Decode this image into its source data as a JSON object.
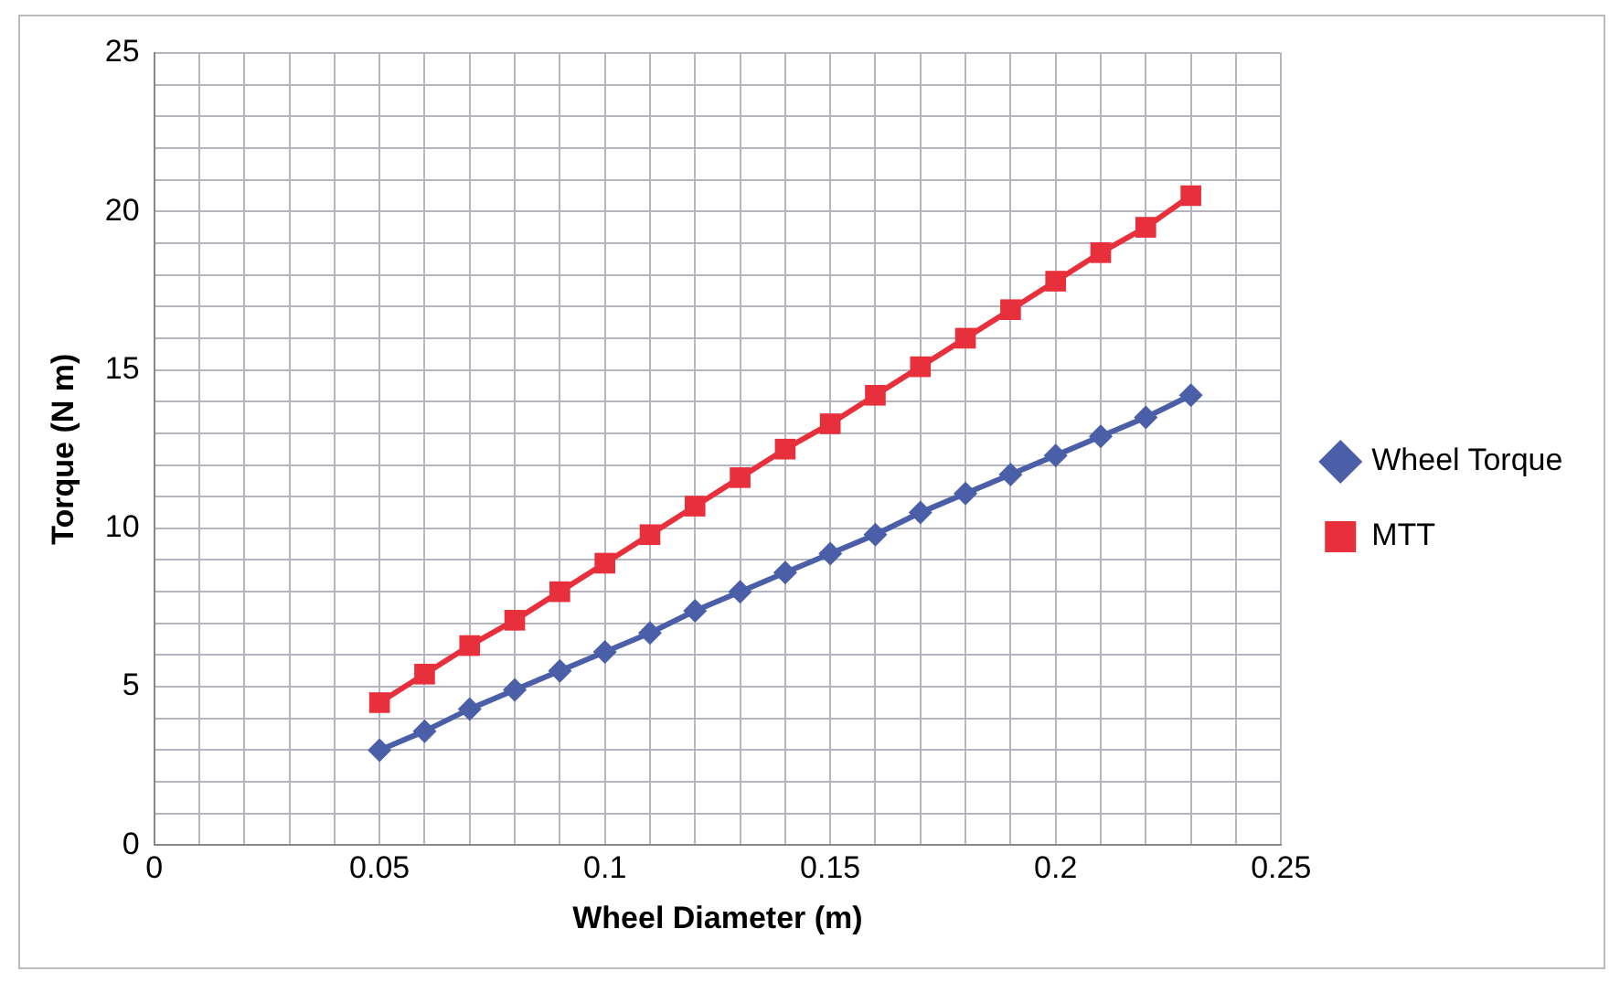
{
  "chart_data": {
    "type": "line",
    "xlabel": "Wheel Diameter (m)",
    "ylabel": "Torque (N m)",
    "x": [
      0.05,
      0.06,
      0.07,
      0.08,
      0.09,
      0.1,
      0.11,
      0.12,
      0.13,
      0.14,
      0.15,
      0.16,
      0.17,
      0.18,
      0.19,
      0.2,
      0.21,
      0.22,
      0.23
    ],
    "series": [
      {
        "name": "Wheel Torque",
        "color": "#4a5fa8",
        "marker": "diamond",
        "values": [
          3.0,
          3.6,
          4.3,
          4.9,
          5.5,
          6.1,
          6.7,
          7.4,
          8.0,
          8.6,
          9.2,
          9.8,
          10.5,
          11.1,
          11.7,
          12.3,
          12.9,
          13.5,
          14.2
        ]
      },
      {
        "name": "MTT",
        "color": "#e8303c",
        "marker": "square",
        "values": [
          4.5,
          5.4,
          6.3,
          7.1,
          8.0,
          8.9,
          9.8,
          10.7,
          11.6,
          12.5,
          13.3,
          14.2,
          15.1,
          16.0,
          16.9,
          17.8,
          18.7,
          19.5,
          20.5
        ]
      }
    ],
    "xlim": [
      0,
      0.25
    ],
    "xticks": [
      0,
      {
        "value": 0.01,
        "label": null
      },
      {
        "value": 0.02,
        "label": null
      },
      {
        "value": 0.03,
        "label": null
      },
      {
        "value": 0.04,
        "label": null
      },
      0.05,
      {
        "value": 0.06,
        "label": null
      },
      {
        "value": 0.07,
        "label": null
      },
      {
        "value": 0.08,
        "label": null
      },
      {
        "value": 0.09,
        "label": null
      },
      0.1,
      {
        "value": 0.11,
        "label": null
      },
      {
        "value": 0.12,
        "label": null
      },
      {
        "value": 0.13,
        "label": null
      },
      {
        "value": 0.14,
        "label": null
      },
      0.15,
      {
        "value": 0.16,
        "label": null
      },
      {
        "value": 0.17,
        "label": null
      },
      {
        "value": 0.18,
        "label": null
      },
      {
        "value": 0.19,
        "label": null
      },
      0.2,
      {
        "value": 0.21,
        "label": null
      },
      {
        "value": 0.22,
        "label": null
      },
      {
        "value": 0.23,
        "label": null
      },
      {
        "value": 0.24,
        "label": null
      },
      0.25
    ],
    "ylim": [
      0,
      25
    ],
    "yticks": [
      0,
      {
        "value": 1,
        "label": null
      },
      {
        "value": 2,
        "label": null
      },
      {
        "value": 3,
        "label": null
      },
      {
        "value": 4,
        "label": null
      },
      5,
      {
        "value": 6,
        "label": null
      },
      {
        "value": 7,
        "label": null
      },
      {
        "value": 8,
        "label": null
      },
      {
        "value": 9,
        "label": null
      },
      10,
      {
        "value": 11,
        "label": null
      },
      {
        "value": 12,
        "label": null
      },
      {
        "value": 13,
        "label": null
      },
      {
        "value": 14,
        "label": null
      },
      15,
      {
        "value": 16,
        "label": null
      },
      {
        "value": 17,
        "label": null
      },
      {
        "value": 18,
        "label": null
      },
      {
        "value": 19,
        "label": null
      },
      20,
      {
        "value": 21,
        "label": null
      },
      {
        "value": 22,
        "label": null
      },
      {
        "value": 23,
        "label": null
      },
      {
        "value": 24,
        "label": null
      },
      25
    ],
    "grid": true,
    "legend": "right",
    "line_style": "solid"
  }
}
